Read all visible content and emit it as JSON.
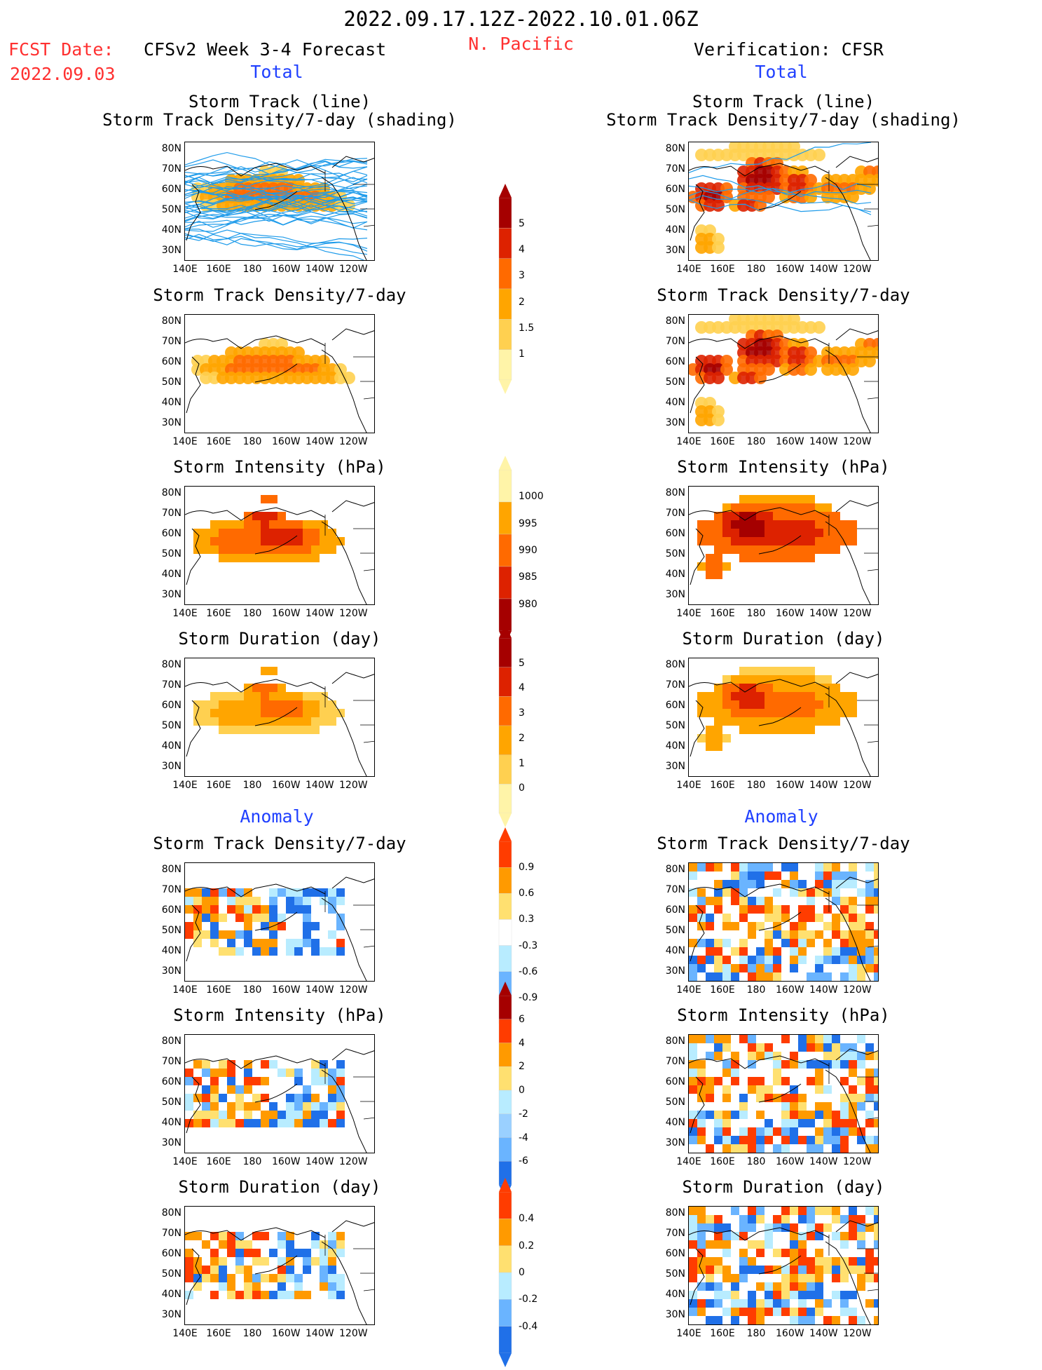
{
  "header": {
    "period": "2022.09.17.12Z-2022.10.01.06Z",
    "fcst_label": "FCST Date:",
    "fcst_date": "2022.09.03",
    "model_title": "CFSv2 Week 3-4 Forecast",
    "region": "N. Pacific",
    "verification_title": "Verification: CFSR"
  },
  "sections": {
    "total_label": "Total",
    "anomaly_label": "Anomaly"
  },
  "panel_titles": {
    "track_line": "Storm Track (line)",
    "track_shading": "Storm Track Density/7-day (shading)",
    "density": "Storm Track Density/7-day",
    "intensity": "Storm Intensity (hPa)",
    "duration": "Storm Duration (day)"
  },
  "axes": {
    "lat_ticks": [
      "80N",
      "70N",
      "60N",
      "50N",
      "40N",
      "30N"
    ],
    "lon_ticks": [
      "140E",
      "160E",
      "180",
      "160W",
      "140W",
      "120W"
    ]
  },
  "colorbars": [
    {
      "id": "density",
      "labels": [
        "5",
        "4",
        "3",
        "2",
        "1.5",
        "1"
      ],
      "colors": [
        "#a50000",
        "#dd2200",
        "#ff6a00",
        "#ffa500",
        "#ffd050",
        "#fff4a8"
      ],
      "arrow_top": "#a50000"
    },
    {
      "id": "intensity",
      "labels": [
        "1000",
        "995",
        "990",
        "985",
        "980"
      ],
      "colors": [
        "#fff4a8",
        "#ffa500",
        "#ff6a00",
        "#dd2200",
        "#a50000"
      ],
      "arrow_bottom": "#a50000"
    },
    {
      "id": "duration",
      "labels": [
        "5",
        "4",
        "3",
        "2",
        "1",
        "0"
      ],
      "colors": [
        "#a50000",
        "#dd2200",
        "#ff6a00",
        "#ffa500",
        "#ffd050",
        "#fff4a8"
      ],
      "arrow_top": "#a50000"
    },
    {
      "id": "density_anom",
      "labels": [
        "0.9",
        "0.6",
        "0.3",
        "-0.3",
        "-0.6",
        "-0.9"
      ],
      "colors": [
        "#ff3c00",
        "#ff9a00",
        "#ffe070",
        "#ffffff",
        "#b8ecff",
        "#6ab4ff",
        "#2070e8"
      ]
    },
    {
      "id": "intensity_anom",
      "labels": [
        "6",
        "4",
        "2",
        "0",
        "-2",
        "-4",
        "-6"
      ],
      "colors": [
        "#a50000",
        "#ff3c00",
        "#ff9a00",
        "#ffe070",
        "#b8ecff",
        "#9ad0ff",
        "#6ab4ff",
        "#2070e8"
      ]
    },
    {
      "id": "duration_anom",
      "labels": [
        "0.4",
        "0.2",
        "0",
        "-0.2",
        "-0.4"
      ],
      "colors": [
        "#ff3c00",
        "#ff9a00",
        "#ffe070",
        "#b8ecff",
        "#6ab4ff",
        "#2070e8"
      ]
    }
  ],
  "chart_data": [
    {
      "type": "heatmap",
      "panel": "forecast-total-track",
      "title": "Storm Track (line)",
      "subtitle": "Storm Track Density/7-day (shading)",
      "scale": "density"
    },
    {
      "type": "heatmap",
      "panel": "forecast-total-density",
      "title": "Storm Track Density/7-day",
      "scale": "density"
    },
    {
      "type": "heatmap",
      "panel": "forecast-total-intensity",
      "title": "Storm Intensity (hPa)",
      "scale": "intensity"
    },
    {
      "type": "heatmap",
      "panel": "forecast-total-duration",
      "title": "Storm Duration (day)",
      "scale": "duration"
    },
    {
      "type": "heatmap",
      "panel": "forecast-anom-density",
      "title": "Storm Track Density/7-day",
      "scale": "density_anom"
    },
    {
      "type": "heatmap",
      "panel": "forecast-anom-intensity",
      "title": "Storm Intensity (hPa)",
      "scale": "intensity_anom"
    },
    {
      "type": "heatmap",
      "panel": "forecast-anom-duration",
      "title": "Storm Duration (day)",
      "scale": "duration_anom"
    },
    {
      "type": "heatmap",
      "panel": "verif-total-track",
      "title": "Storm Track (line)",
      "subtitle": "Storm Track Density/7-day (shading)",
      "scale": "density"
    },
    {
      "type": "heatmap",
      "panel": "verif-total-density",
      "title": "Storm Track Density/7-day",
      "scale": "density"
    },
    {
      "type": "heatmap",
      "panel": "verif-total-intensity",
      "title": "Storm Intensity (hPa)",
      "scale": "intensity"
    },
    {
      "type": "heatmap",
      "panel": "verif-total-duration",
      "title": "Storm Duration (day)",
      "scale": "duration"
    },
    {
      "type": "heatmap",
      "panel": "verif-anom-density",
      "title": "Storm Track Density/7-day",
      "scale": "density_anom"
    },
    {
      "type": "heatmap",
      "panel": "verif-anom-intensity",
      "title": "Storm Intensity (hPa)",
      "scale": "intensity_anom"
    },
    {
      "type": "heatmap",
      "panel": "verif-anom-duration",
      "title": "Storm Duration (day)",
      "scale": "duration_anom"
    }
  ]
}
